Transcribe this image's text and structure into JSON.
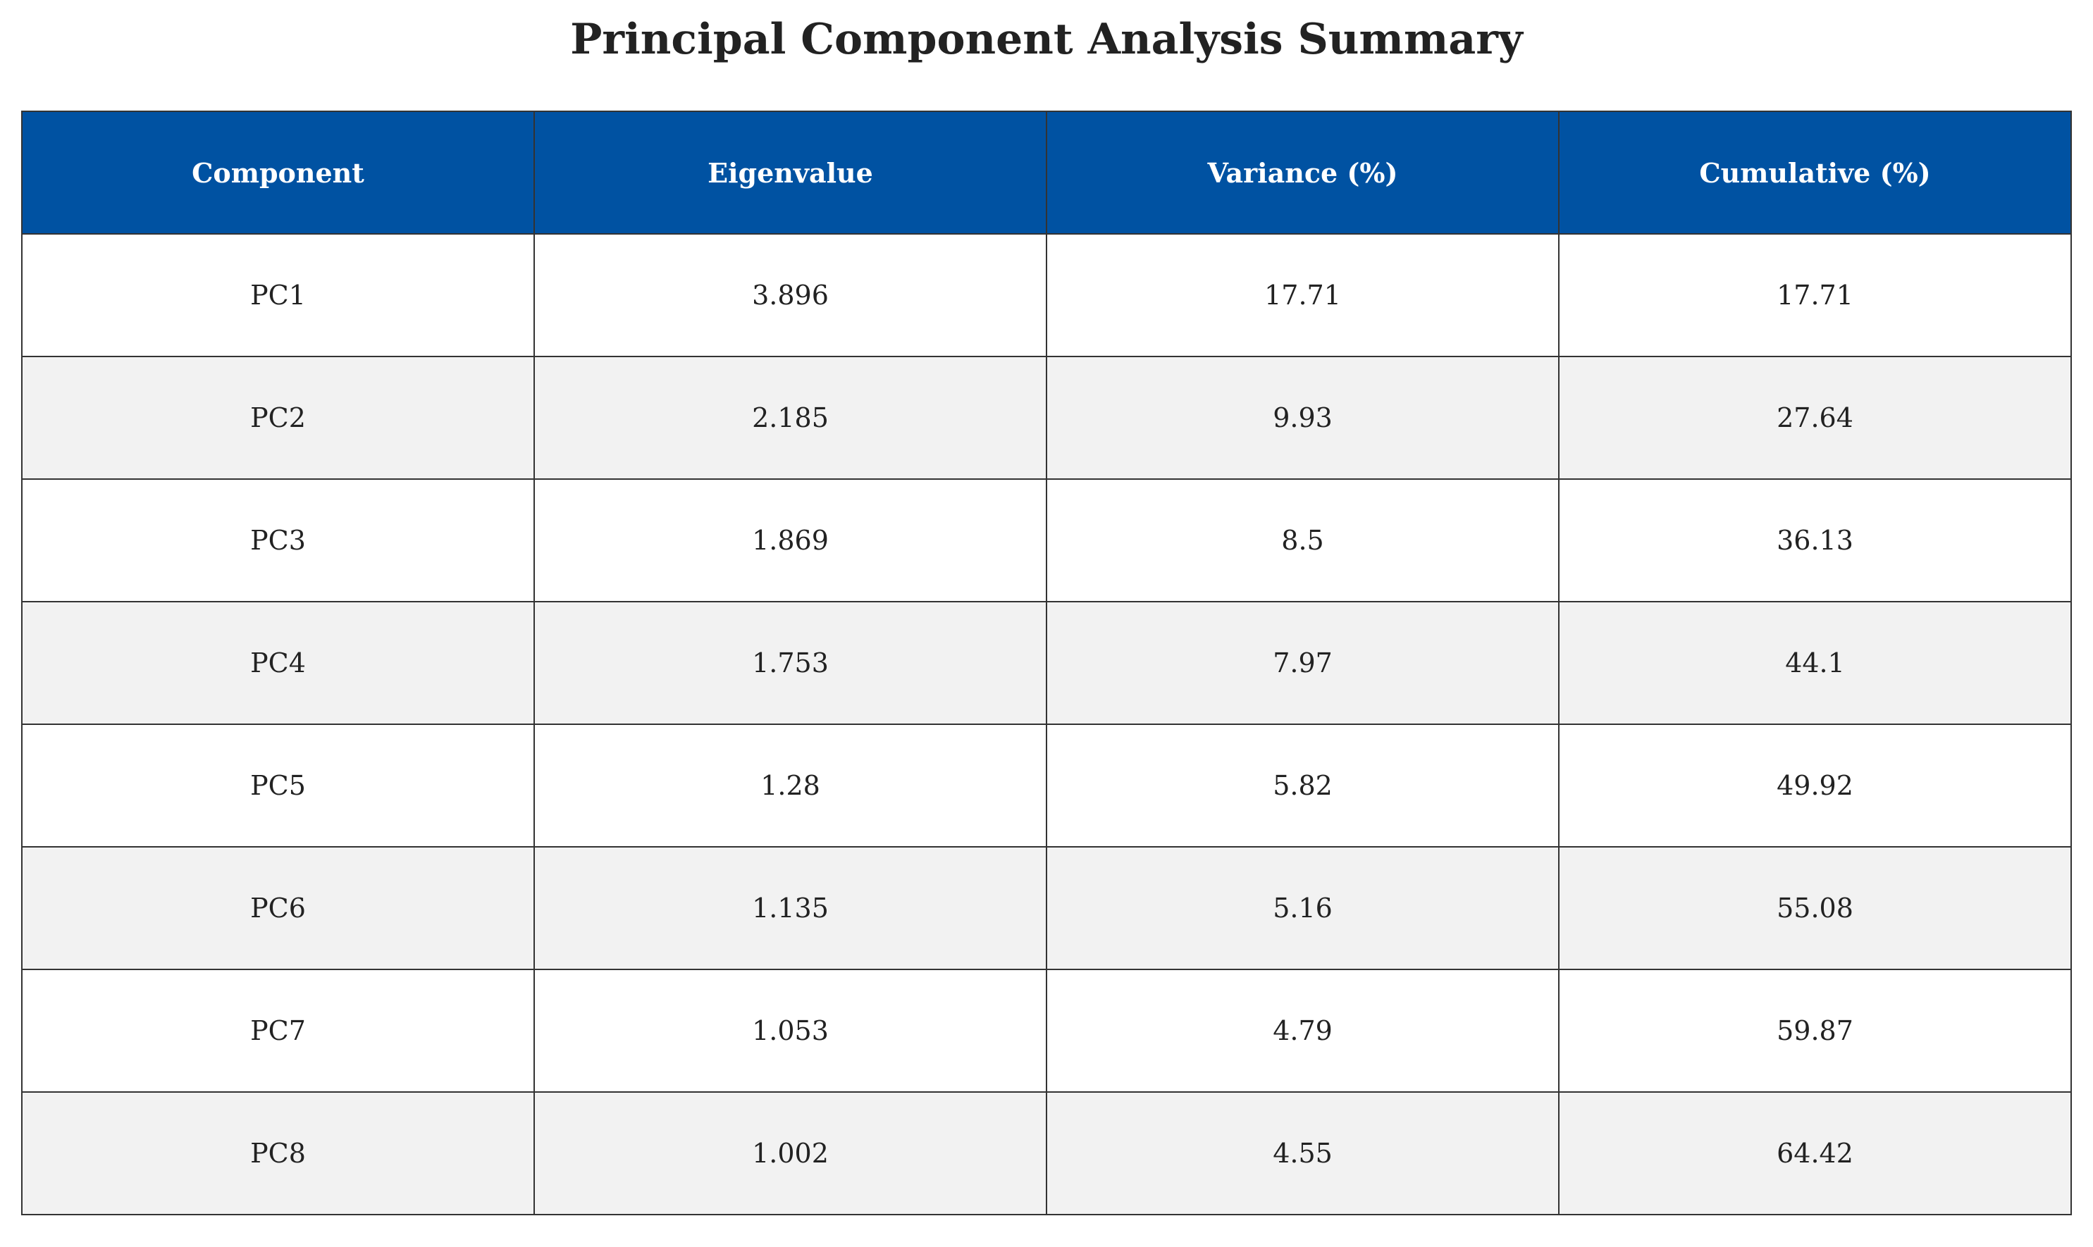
{
  "colors": {
    "header_bg": "#0052a2",
    "header_text": "#ffffff",
    "row_alt_bg": "#f2f2f2",
    "border": "#333333"
  },
  "chart_data": {
    "type": "table",
    "title": "Principal Component Analysis Summary",
    "columns": [
      "Component",
      "Eigenvalue",
      "Variance (%)",
      "Cumulative (%)"
    ],
    "rows": [
      [
        "PC1",
        "3.896",
        "17.71",
        "17.71"
      ],
      [
        "PC2",
        "2.185",
        "9.93",
        "27.64"
      ],
      [
        "PC3",
        "1.869",
        "8.5",
        "36.13"
      ],
      [
        "PC4",
        "1.753",
        "7.97",
        "44.1"
      ],
      [
        "PC5",
        "1.28",
        "5.82",
        "49.92"
      ],
      [
        "PC6",
        "1.135",
        "5.16",
        "55.08"
      ],
      [
        "PC7",
        "1.053",
        "4.79",
        "59.87"
      ],
      [
        "PC8",
        "1.002",
        "4.55",
        "64.42"
      ]
    ]
  }
}
